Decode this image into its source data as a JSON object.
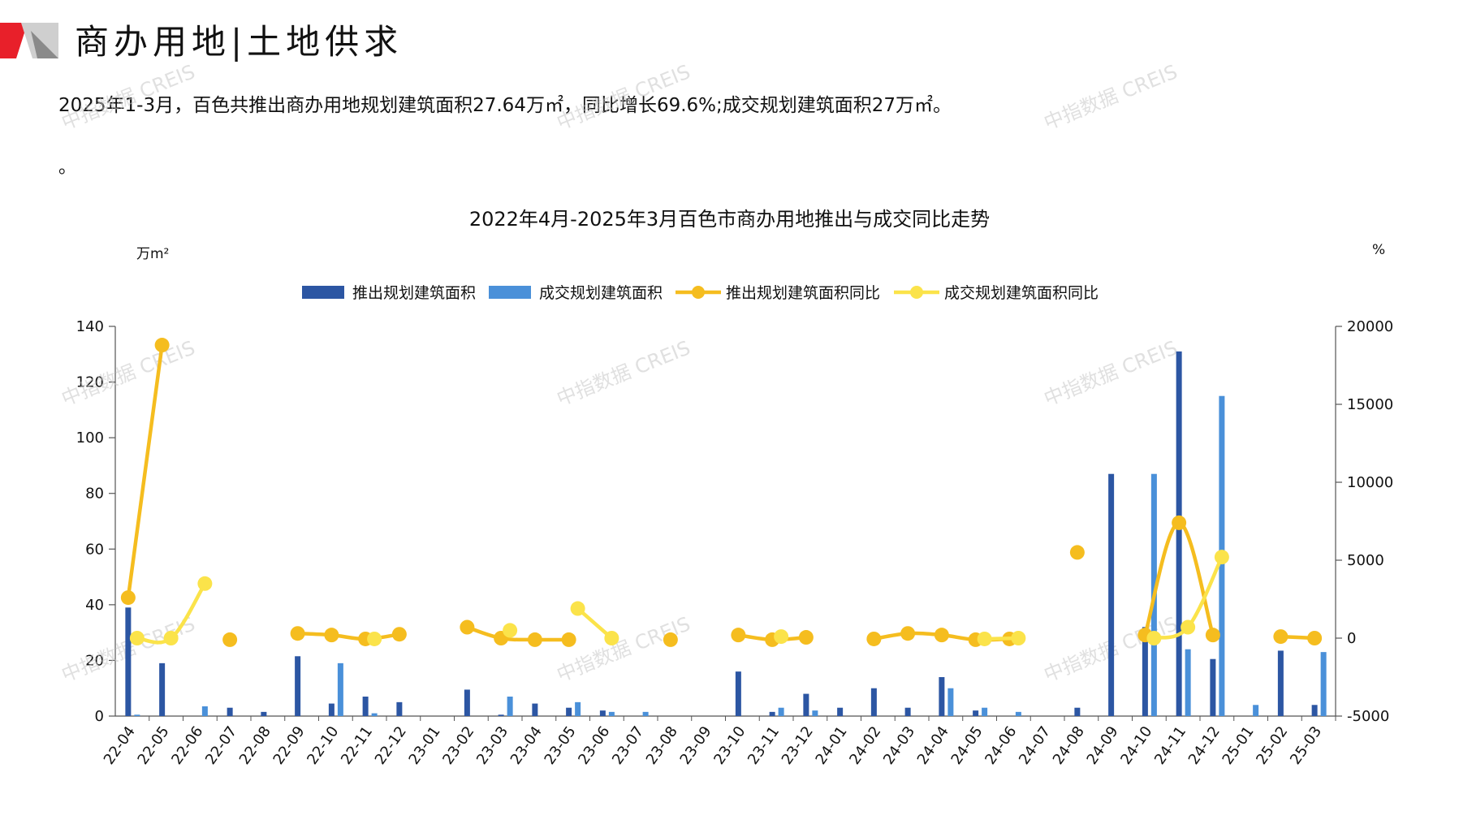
{
  "header": {
    "title": "商办用地|土地供求"
  },
  "summary": "2025年1-3月，百色共推出商办用地规划建筑面积27.64万㎡，同比增长69.6%;成交规划建筑面积27万㎡。",
  "note": "。",
  "watermark_text": "中指数据 CREIS",
  "colors": {
    "brand_red": "#e8202a",
    "supply_bar": "#2c56a3",
    "deal_bar": "#4a90d9",
    "supply_yoy": "#f5bd1f",
    "deal_yoy": "#fbe34a"
  },
  "chart_data": {
    "type": "bar",
    "title": "2022年4月-2025年3月百色市商办用地推出与成交同比走势",
    "y_left_unit": "万m²",
    "y_right_unit": "%",
    "ylim_left": [
      0,
      140
    ],
    "ylim_right": [
      -5000,
      20000
    ],
    "yticks_left": [
      0,
      20,
      40,
      60,
      80,
      100,
      120,
      140
    ],
    "yticks_right": [
      -5000,
      0,
      5000,
      10000,
      15000,
      20000
    ],
    "legend_position": "top-center",
    "categories": [
      "22-04",
      "22-05",
      "22-06",
      "22-07",
      "22-08",
      "22-09",
      "22-10",
      "22-11",
      "22-12",
      "23-01",
      "23-02",
      "23-03",
      "23-04",
      "23-05",
      "23-06",
      "23-07",
      "23-08",
      "23-09",
      "23-10",
      "23-11",
      "23-12",
      "24-01",
      "24-02",
      "24-03",
      "24-04",
      "24-05",
      "24-06",
      "24-07",
      "24-08",
      "24-09",
      "24-10",
      "24-11",
      "24-12",
      "25-01",
      "25-02",
      "25-03"
    ],
    "series": [
      {
        "name": "推出规划建筑面积",
        "kind": "bar",
        "axis": "left",
        "values": [
          39,
          19,
          0,
          3,
          1.5,
          21.5,
          4.5,
          7,
          5,
          0,
          9.5,
          0.5,
          4.5,
          3,
          2,
          0,
          0,
          0,
          16,
          1.5,
          8,
          3,
          10,
          3,
          14,
          2,
          0,
          0,
          3,
          87,
          32,
          131,
          20.5,
          0,
          23.5,
          4
        ]
      },
      {
        "name": "成交规划建筑面积",
        "kind": "bar",
        "axis": "left",
        "values": [
          0.5,
          0,
          3.5,
          0,
          0,
          0,
          19,
          1,
          0,
          0,
          0,
          7,
          0,
          5,
          1.5,
          1.5,
          0,
          0,
          0,
          3,
          2,
          0,
          0,
          0,
          10,
          3,
          1.5,
          0,
          0,
          0,
          87,
          24,
          115,
          4,
          0,
          23
        ]
      },
      {
        "name": "推出规划建筑面积同比",
        "kind": "line",
        "axis": "right",
        "values": [
          2600,
          18800,
          null,
          -100,
          null,
          300,
          200,
          -50,
          250,
          null,
          700,
          0,
          -100,
          -100,
          null,
          null,
          -100,
          null,
          200,
          -100,
          50,
          null,
          -50,
          300,
          200,
          -100,
          -50,
          null,
          5500,
          null,
          200,
          7400,
          200,
          null,
          100,
          0
        ]
      },
      {
        "name": "成交规划建筑面积同比",
        "kind": "line",
        "axis": "right",
        "values": [
          0,
          0,
          3500,
          null,
          null,
          null,
          null,
          -50,
          null,
          null,
          null,
          500,
          null,
          1900,
          0,
          null,
          null,
          null,
          null,
          100,
          null,
          null,
          null,
          null,
          null,
          -50,
          0,
          null,
          null,
          null,
          0,
          700,
          5200,
          null,
          null,
          null
        ]
      }
    ]
  }
}
